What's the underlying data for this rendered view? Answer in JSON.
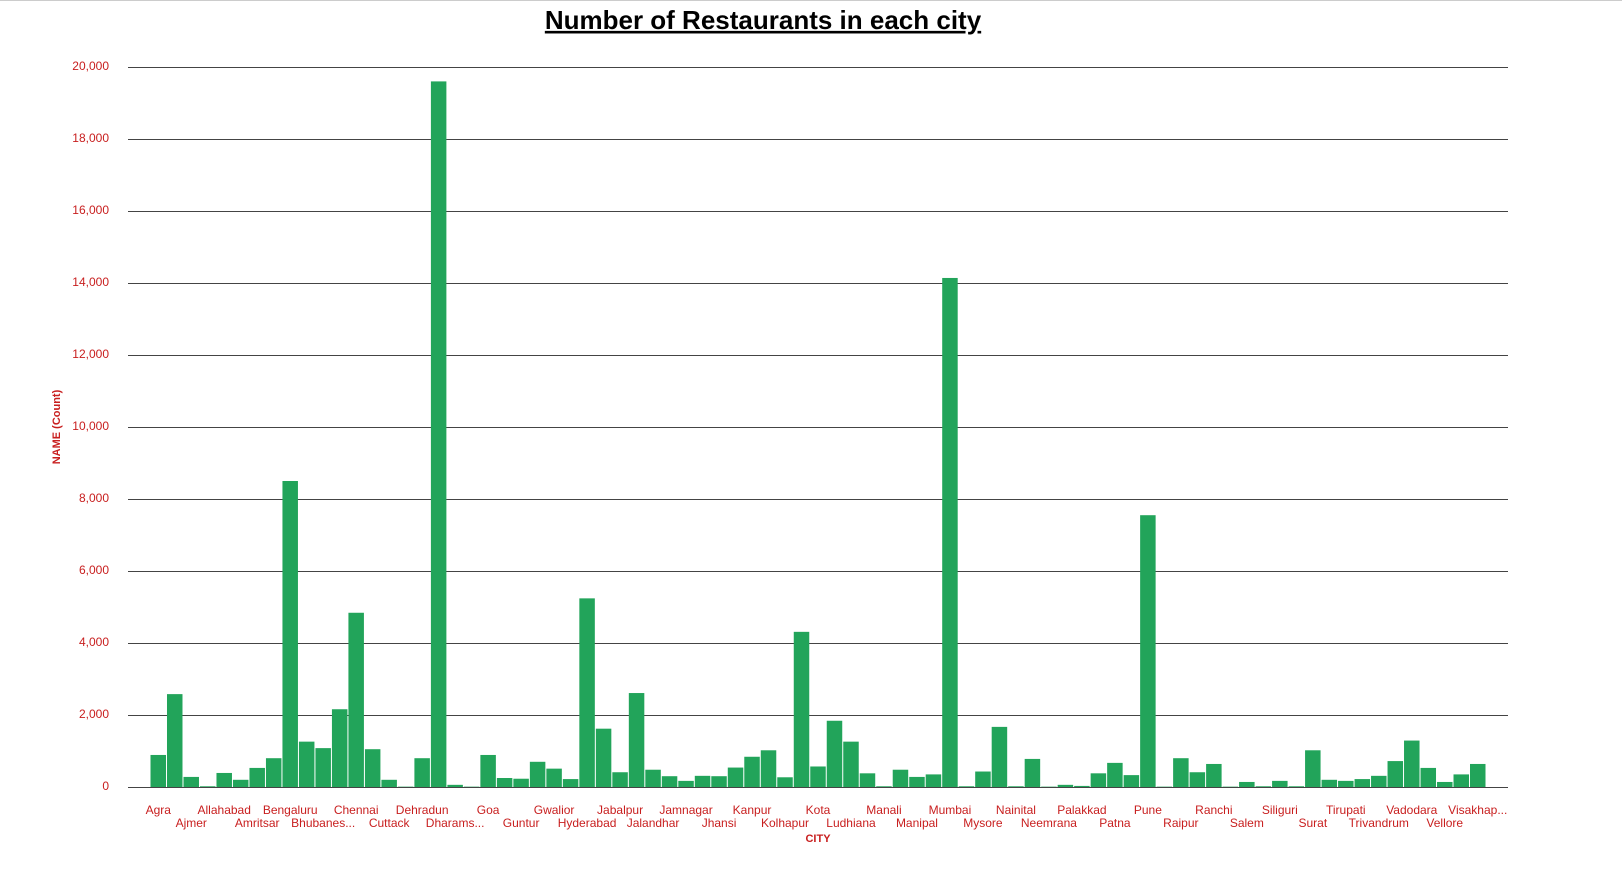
{
  "chart_data": {
    "type": "bar",
    "title": "Number of Restaurants in each city",
    "x_label": "CITY",
    "y_label": "NAME (Count)",
    "categories": [
      "Agra",
      null,
      "Ajmer",
      null,
      "Allahabad",
      null,
      "Amritsar",
      null,
      "Bengaluru",
      null,
      "Bhubanes...",
      null,
      "Chennai",
      null,
      "Cuttack",
      null,
      "Dehradun",
      null,
      "Dharams...",
      null,
      "Goa",
      null,
      "Guntur",
      null,
      "Gwalior",
      null,
      "Hyderabad",
      null,
      "Jabalpur",
      null,
      "Jalandhar",
      null,
      "Jamnagar",
      null,
      "Jhansi",
      null,
      "Kanpur",
      null,
      "Kolhapur",
      null,
      "Kota",
      null,
      "Ludhiana",
      null,
      "Manali",
      null,
      "Manipal",
      null,
      "Mumbai",
      null,
      "Mysore",
      null,
      "Nainital",
      null,
      "Neemrana",
      null,
      "Palakkad",
      null,
      "Patna",
      null,
      "Pune",
      null,
      "Raipur",
      null,
      "Ranchi",
      null,
      "Salem",
      null,
      "Siliguri",
      null,
      "Surat",
      null,
      "Tirupati",
      null,
      "Trivandrum",
      null,
      "Vadodara",
      null,
      "Vellore",
      null,
      "Visakhap..."
    ],
    "values": [
      890,
      2580,
      280,
      20,
      390,
      200,
      530,
      800,
      8500,
      1260,
      1080,
      2160,
      4840,
      1050,
      200,
      10,
      800,
      19600,
      60,
      10,
      890,
      250,
      230,
      700,
      510,
      220,
      5240,
      1620,
      410,
      2610,
      480,
      300,
      170,
      310,
      300,
      540,
      840,
      1020,
      270,
      4310,
      570,
      1840,
      1260,
      380,
      20,
      480,
      280,
      350,
      14140,
      20,
      430,
      1670,
      20,
      780,
      10,
      60,
      30,
      380,
      670,
      330,
      7550,
      10,
      800,
      410,
      640,
      10,
      140,
      20,
      170,
      20,
      1020,
      200,
      170,
      220,
      310,
      720,
      1290,
      530,
      140,
      350,
      640
    ],
    "color": "#22a45a",
    "ylim": [
      0,
      20000
    ],
    "yticks": [
      0,
      {
        "value": 2000,
        "label": "2,000"
      },
      {
        "value": 4000,
        "label": "4,000"
      },
      {
        "value": 6000,
        "label": "6,000"
      },
      {
        "value": 8000,
        "label": "8,000"
      },
      {
        "value": 10000,
        "label": "10,000"
      },
      {
        "value": 12000,
        "label": "12,000"
      },
      {
        "value": 14000,
        "label": "14,000"
      },
      {
        "value": 16000,
        "label": "16,000"
      },
      {
        "value": 18000,
        "label": "18,000"
      },
      {
        "value": 20000,
        "label": "20,000"
      }
    ],
    "grid": true
  }
}
